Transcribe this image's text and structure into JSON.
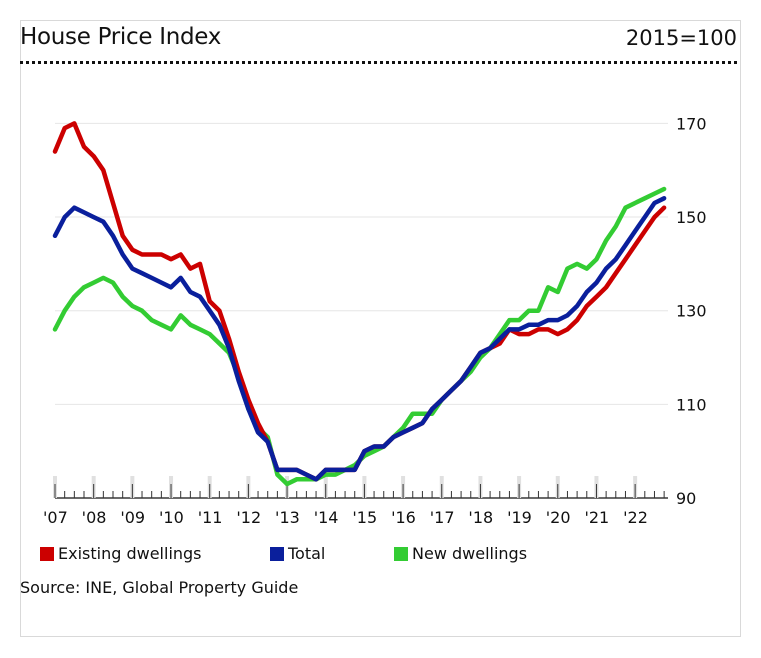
{
  "header": {
    "title": "House Price Index",
    "base": "2015=100"
  },
  "source": "Source: INE, Global Property Guide",
  "chart_data": {
    "type": "line",
    "title": "House Price Index",
    "subtitle": "2015=100",
    "xlabel": "",
    "ylabel": "",
    "ylim": [
      90,
      175
    ],
    "yticks": [
      90,
      110,
      130,
      150,
      170
    ],
    "grid": true,
    "legend_position": "bottom",
    "xlim": [
      2007.0,
      2022.85
    ],
    "xtick_labels": [
      {
        "x": 2007,
        "label": "'07"
      },
      {
        "x": 2008,
        "label": "'08"
      },
      {
        "x": 2009,
        "label": "'09"
      },
      {
        "x": 2010,
        "label": "'10"
      },
      {
        "x": 2011,
        "label": "'11"
      },
      {
        "x": 2012,
        "label": "'12"
      },
      {
        "x": 2013,
        "label": "'13"
      },
      {
        "x": 2014,
        "label": "'14"
      },
      {
        "x": 2015,
        "label": "'15"
      },
      {
        "x": 2016,
        "label": "'16"
      },
      {
        "x": 2017,
        "label": "'17"
      },
      {
        "x": 2018,
        "label": "'18"
      },
      {
        "x": 2019,
        "label": "'19"
      },
      {
        "x": 2020,
        "label": "'20"
      },
      {
        "x": 2021,
        "label": "'21"
      },
      {
        "x": 2022,
        "label": "'22"
      }
    ],
    "x": [
      2007.0,
      2007.25,
      2007.5,
      2007.75,
      2008.0,
      2008.25,
      2008.5,
      2008.75,
      2009.0,
      2009.25,
      2009.5,
      2009.75,
      2010.0,
      2010.25,
      2010.5,
      2010.75,
      2011.0,
      2011.25,
      2011.5,
      2011.75,
      2012.0,
      2012.25,
      2012.5,
      2012.75,
      2013.0,
      2013.25,
      2013.5,
      2013.75,
      2014.0,
      2014.25,
      2014.5,
      2014.75,
      2015.0,
      2015.25,
      2015.5,
      2015.75,
      2016.0,
      2016.25,
      2016.5,
      2016.75,
      2017.0,
      2017.25,
      2017.5,
      2017.75,
      2018.0,
      2018.25,
      2018.5,
      2018.75,
      2019.0,
      2019.25,
      2019.5,
      2019.75,
      2020.0,
      2020.25,
      2020.5,
      2020.75,
      2021.0,
      2021.25,
      2021.5,
      2021.75,
      2022.0,
      2022.25,
      2022.5,
      2022.75
    ],
    "series": [
      {
        "name": "Existing dwellings",
        "color": "#cc0000",
        "values": [
          164,
          169,
          170,
          165,
          163,
          160,
          153,
          146,
          143,
          142,
          142,
          142,
          141,
          142,
          139,
          140,
          132,
          130,
          124,
          117,
          111,
          106,
          102,
          96,
          96,
          96,
          95,
          94,
          96,
          96,
          96,
          96,
          100,
          101,
          101,
          103,
          104,
          105,
          106,
          109,
          111,
          113,
          115,
          118,
          121,
          122,
          123,
          126,
          125,
          125,
          126,
          126,
          125,
          126,
          128,
          131,
          133,
          135,
          138,
          141,
          144,
          147,
          150,
          152
        ]
      },
      {
        "name": "Total",
        "color": "#0a1f9c",
        "values": [
          146,
          150,
          152,
          151,
          150,
          149,
          146,
          142,
          139,
          138,
          137,
          136,
          135,
          137,
          134,
          133,
          130,
          127,
          122,
          115,
          109,
          104,
          102,
          96,
          96,
          96,
          95,
          94,
          96,
          96,
          96,
          96,
          100,
          101,
          101,
          103,
          104,
          105,
          106,
          109,
          111,
          113,
          115,
          118,
          121,
          122,
          124,
          126,
          126,
          127,
          127,
          128,
          128,
          129,
          131,
          134,
          136,
          139,
          141,
          144,
          147,
          150,
          153,
          154
        ]
      },
      {
        "name": "New dwellings",
        "color": "#33cc33",
        "values": [
          126,
          130,
          133,
          135,
          136,
          137,
          136,
          133,
          131,
          130,
          128,
          127,
          126,
          129,
          127,
          126,
          125,
          123,
          121,
          116,
          109,
          105,
          103,
          95,
          93,
          94,
          94,
          94,
          95,
          95,
          96,
          97,
          99,
          100,
          101,
          103,
          105,
          108,
          108,
          108,
          111,
          113,
          115,
          117,
          120,
          122,
          125,
          128,
          128,
          130,
          130,
          135,
          134,
          139,
          140,
          139,
          141,
          145,
          148,
          152,
          153,
          154,
          155,
          156
        ]
      }
    ]
  }
}
